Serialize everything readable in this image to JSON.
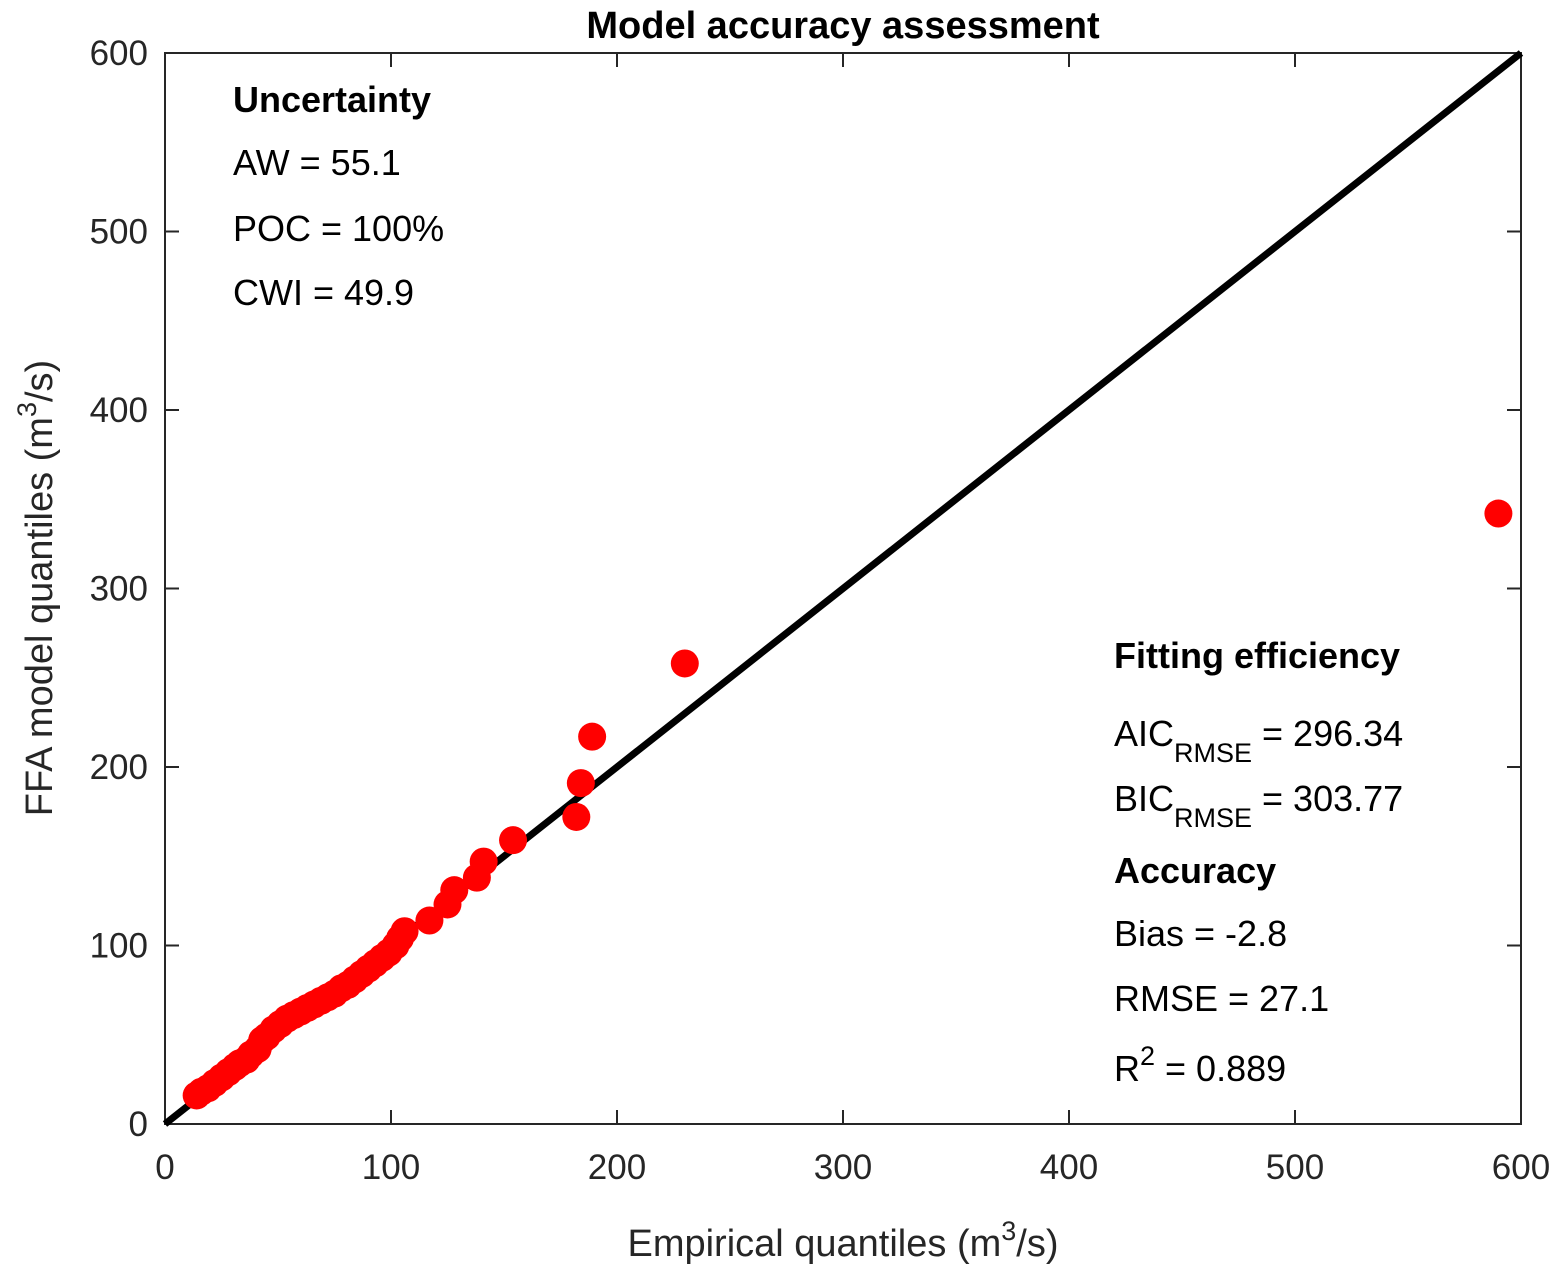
{
  "chart_data": {
    "type": "scatter",
    "title": "Model accuracy assessment",
    "xlabel": {
      "prefix": "Empirical quantiles (m",
      "sup": "3",
      "suffix": "/s)"
    },
    "ylabel": {
      "prefix": "FFA model quantiles (m",
      "sup": "3",
      "suffix": "/s)"
    },
    "xlim": [
      0,
      600
    ],
    "ylim": [
      0,
      600
    ],
    "xticks": [
      "0",
      "100",
      "200",
      "300",
      "400",
      "500",
      "600"
    ],
    "yticks": [
      "0",
      "100",
      "200",
      "300",
      "400",
      "500",
      "600"
    ],
    "grid": false,
    "reference_line": {
      "x": [
        0,
        600
      ],
      "y": [
        0,
        600
      ],
      "color": "#000000"
    },
    "marker_color": "#ff0000",
    "points": {
      "x": [
        14,
        16,
        19,
        22,
        25,
        28,
        31,
        33,
        36,
        38,
        41,
        43,
        45,
        48,
        51,
        54,
        57,
        60,
        63,
        66,
        69,
        72,
        75,
        78,
        81,
        84,
        87,
        90,
        93,
        96,
        99,
        102,
        104,
        106,
        117,
        125,
        128,
        138,
        141,
        154,
        182,
        184,
        189,
        230,
        590
      ],
      "y": [
        16,
        18,
        20,
        23,
        26,
        29,
        32,
        34,
        36,
        39,
        42,
        47,
        49,
        53,
        56,
        59,
        61,
        63,
        65,
        67,
        69,
        71,
        73,
        76,
        78,
        81,
        84,
        87,
        90,
        93,
        96,
        100,
        104,
        108,
        114,
        123,
        131,
        138,
        147,
        159,
        172,
        191,
        217,
        258,
        342
      ]
    }
  },
  "annotations": {
    "uncertainty": {
      "heading": "Uncertainty",
      "aw": "AW = 55.1",
      "poc": "POC = 100%",
      "cwi": "CWI = 49.9"
    },
    "fitting": {
      "heading": "Fitting efficiency",
      "aic": {
        "main": "AIC",
        "sub": "RMSE",
        "value": " = 296.34"
      },
      "bic": {
        "main": "BIC",
        "sub": "RMSE",
        "value": " = 303.77"
      }
    },
    "accuracy": {
      "heading": "Accuracy",
      "bias": "Bias = -2.8",
      "rmse": "RMSE = 27.1",
      "r2": {
        "main": "R",
        "sup": "2",
        "value": " = 0.889"
      }
    }
  }
}
